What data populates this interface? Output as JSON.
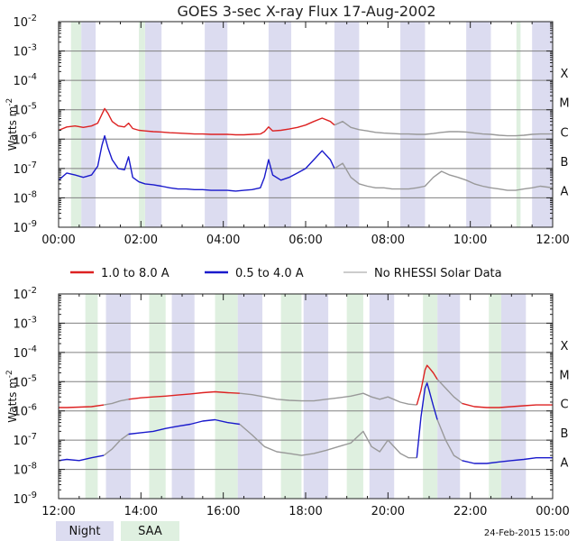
{
  "title": "GOES 3-sec X-ray Flux   17-Aug-2002",
  "footer_timestamp": "24-Feb-2015 15:00",
  "ylabel": "Watts m",
  "ylabel_superscript": "-2",
  "legend": [
    {
      "label": "1.0 to 8.0 A",
      "color": "#dd2222"
    },
    {
      "label": "0.5 to 4.0 A",
      "color": "#1a1acc"
    },
    {
      "label": "No RHESSI Solar Data",
      "color": "#999999"
    }
  ],
  "shading_legend": [
    {
      "label": "Night",
      "color": "#dcdcf0"
    },
    {
      "label": "SAA",
      "color": "#dff0e0"
    }
  ],
  "chart_data": [
    {
      "type": "line",
      "x_unit": "hours UT",
      "xlim": [
        0,
        12
      ],
      "x_tick_labels": [
        "00:00",
        "02:00",
        "04:00",
        "06:00",
        "08:00",
        "10:00",
        "12:00"
      ],
      "y_scale": "log",
      "ylim": [
        1e-09,
        0.01
      ],
      "y_tick_labels": [
        {
          "mantissa": "10",
          "exponent": "-9"
        },
        {
          "mantissa": "10",
          "exponent": "-8"
        },
        {
          "mantissa": "10",
          "exponent": "-7"
        },
        {
          "mantissa": "10",
          "exponent": "-6"
        },
        {
          "mantissa": "10",
          "exponent": "-5"
        },
        {
          "mantissa": "10",
          "exponent": "-4"
        },
        {
          "mantissa": "10",
          "exponent": "-3"
        },
        {
          "mantissa": "10",
          "exponent": "-2"
        }
      ],
      "class_labels": [
        {
          "label": "A",
          "value": 1e-08
        },
        {
          "label": "B",
          "value": 1e-07
        },
        {
          "label": "C",
          "value": 1e-06
        },
        {
          "label": "M",
          "value": 1e-05
        },
        {
          "label": "X",
          "value": 0.0001
        }
      ],
      "night_intervals": [
        [
          0.55,
          0.9
        ],
        [
          2.1,
          2.5
        ],
        [
          3.55,
          4.1
        ],
        [
          5.1,
          5.65
        ],
        [
          6.7,
          7.3
        ],
        [
          8.3,
          8.9
        ],
        [
          9.9,
          10.5
        ],
        [
          11.5,
          12.0
        ]
      ],
      "saa_intervals": [
        [
          0.3,
          0.55
        ],
        [
          1.95,
          2.1
        ],
        [
          11.12,
          11.22
        ]
      ],
      "series": [
        {
          "name": "1.0 to 8.0 A",
          "segments": [
            {
              "color": "#dd2222",
              "x": [
                0,
                0.2,
                0.4,
                0.6,
                0.8,
                0.95,
                1.05,
                1.12,
                1.2,
                1.3,
                1.45,
                1.6,
                1.7,
                1.8,
                1.95,
                2.1,
                2.3,
                2.5,
                2.7,
                2.9,
                3.1,
                3.3,
                3.5,
                3.7,
                3.9,
                4.1,
                4.3,
                4.5,
                4.7,
                4.9,
                5.0,
                5.1,
                5.2,
                5.4,
                5.6,
                5.8,
                6.0,
                6.2,
                6.4,
                6.6,
                6.7
              ],
              "y": [
                2e-06,
                2.6e-06,
                2.8e-06,
                2.5e-06,
                2.8e-06,
                3.5e-06,
                7e-06,
                1.1e-05,
                7.5e-06,
                4e-06,
                2.8e-06,
                2.6e-06,
                3.5e-06,
                2.3e-06,
                2e-06,
                1.9e-06,
                1.8e-06,
                1.75e-06,
                1.65e-06,
                1.6e-06,
                1.55e-06,
                1.5e-06,
                1.5e-06,
                1.45e-06,
                1.45e-06,
                1.45e-06,
                1.4e-06,
                1.4e-06,
                1.45e-06,
                1.5e-06,
                1.8e-06,
                2.6e-06,
                1.9e-06,
                2e-06,
                2.2e-06,
                2.5e-06,
                3e-06,
                4e-06,
                5.2e-06,
                4e-06,
                3e-06
              ]
            },
            {
              "color": "#999999",
              "x": [
                6.7,
                6.9,
                7.1,
                7.3,
                7.5,
                7.7,
                7.9,
                8.1,
                8.3,
                8.5,
                8.7,
                8.9,
                9.1,
                9.3,
                9.5,
                9.7,
                9.9,
                10.1,
                10.3,
                10.5,
                10.7,
                10.9,
                11.1,
                11.3,
                11.5,
                11.7,
                12.0
              ],
              "y": [
                3e-06,
                4e-06,
                2.5e-06,
                2.1e-06,
                1.9e-06,
                1.7e-06,
                1.6e-06,
                1.55e-06,
                1.5e-06,
                1.5e-06,
                1.45e-06,
                1.45e-06,
                1.55e-06,
                1.7e-06,
                1.8e-06,
                1.8e-06,
                1.75e-06,
                1.6e-06,
                1.5e-06,
                1.45e-06,
                1.35e-06,
                1.3e-06,
                1.3e-06,
                1.35e-06,
                1.45e-06,
                1.5e-06,
                1.5e-06
              ]
            }
          ]
        },
        {
          "name": "0.5 to 4.0 A",
          "segments": [
            {
              "color": "#1a1acc",
              "x": [
                0,
                0.2,
                0.4,
                0.6,
                0.8,
                0.95,
                1.05,
                1.12,
                1.2,
                1.3,
                1.45,
                1.6,
                1.7,
                1.8,
                1.95,
                2.1,
                2.3,
                2.5,
                2.7,
                2.9,
                3.1,
                3.3,
                3.5,
                3.7,
                3.9,
                4.1,
                4.3,
                4.5,
                4.7,
                4.9,
                5.0,
                5.1,
                5.2,
                5.4,
                5.6,
                5.8,
                6.0,
                6.2,
                6.4,
                6.6,
                6.7
              ],
              "y": [
                4e-08,
                7e-08,
                6e-08,
                5e-08,
                6e-08,
                1.2e-07,
                6e-07,
                1.3e-06,
                5e-07,
                2e-07,
                1e-07,
                9e-08,
                2.5e-07,
                5e-08,
                3.5e-08,
                3e-08,
                2.8e-08,
                2.5e-08,
                2.2e-08,
                2e-08,
                2e-08,
                1.9e-08,
                1.9e-08,
                1.8e-08,
                1.8e-08,
                1.8e-08,
                1.7e-08,
                1.8e-08,
                1.9e-08,
                2.2e-08,
                5e-08,
                2e-07,
                6e-08,
                4e-08,
                5e-08,
                7e-08,
                1e-07,
                2e-07,
                4e-07,
                2e-07,
                1e-07
              ]
            },
            {
              "color": "#999999",
              "x": [
                6.7,
                6.9,
                7.1,
                7.3,
                7.5,
                7.7,
                7.9,
                8.1,
                8.3,
                8.5,
                8.7,
                8.9,
                9.1,
                9.3,
                9.5,
                9.7,
                9.9,
                10.1,
                10.3,
                10.5,
                10.7,
                10.9,
                11.1,
                11.3,
                11.5,
                11.7,
                12.0
              ],
              "y": [
                1e-07,
                1.5e-07,
                5e-08,
                3e-08,
                2.5e-08,
                2.2e-08,
                2.2e-08,
                2e-08,
                2e-08,
                2e-08,
                2.2e-08,
                2.5e-08,
                5e-08,
                8e-08,
                6e-08,
                5e-08,
                4e-08,
                3e-08,
                2.5e-08,
                2.2e-08,
                2e-08,
                1.8e-08,
                1.8e-08,
                2e-08,
                2.2e-08,
                2.5e-08,
                2.2e-08
              ]
            }
          ]
        }
      ]
    },
    {
      "type": "line",
      "x_unit": "hours UT",
      "xlim": [
        12,
        24
      ],
      "x_tick_labels": [
        "12:00",
        "14:00",
        "16:00",
        "18:00",
        "20:00",
        "22:00",
        "00:00"
      ],
      "y_scale": "log",
      "ylim": [
        1e-09,
        0.01
      ],
      "y_tick_labels": [
        {
          "mantissa": "10",
          "exponent": "-9"
        },
        {
          "mantissa": "10",
          "exponent": "-8"
        },
        {
          "mantissa": "10",
          "exponent": "-7"
        },
        {
          "mantissa": "10",
          "exponent": "-6"
        },
        {
          "mantissa": "10",
          "exponent": "-5"
        },
        {
          "mantissa": "10",
          "exponent": "-4"
        },
        {
          "mantissa": "10",
          "exponent": "-3"
        },
        {
          "mantissa": "10",
          "exponent": "-2"
        }
      ],
      "class_labels": [
        {
          "label": "A",
          "value": 1e-08
        },
        {
          "label": "B",
          "value": 1e-07
        },
        {
          "label": "C",
          "value": 1e-06
        },
        {
          "label": "M",
          "value": 1e-05
        },
        {
          "label": "X",
          "value": 0.0001
        }
      ],
      "night_intervals": [
        [
          13.15,
          13.75
        ],
        [
          14.75,
          15.3
        ],
        [
          16.35,
          16.95
        ],
        [
          17.95,
          18.55
        ],
        [
          19.55,
          20.15
        ],
        [
          21.2,
          21.75
        ],
        [
          22.75,
          23.35
        ]
      ],
      "saa_intervals": [
        [
          12.65,
          12.95
        ],
        [
          14.2,
          14.6
        ],
        [
          15.8,
          16.35
        ],
        [
          17.4,
          17.9
        ],
        [
          19.0,
          19.4
        ],
        [
          20.85,
          21.2
        ],
        [
          22.45,
          22.75
        ]
      ],
      "series": [
        {
          "name": "1.0 to 8.0 A",
          "segments": [
            {
              "color": "#dd2222",
              "x": [
                12.0,
                12.2,
                12.5,
                12.8,
                13.1
              ],
              "y": [
                1.3e-06,
                1.3e-06,
                1.35e-06,
                1.4e-06,
                1.6e-06
              ]
            },
            {
              "color": "#999999",
              "x": [
                13.1,
                13.3,
                13.5,
                13.7
              ],
              "y": [
                1.6e-06,
                1.8e-06,
                2.2e-06,
                2.5e-06
              ]
            },
            {
              "color": "#dd2222",
              "x": [
                13.7,
                14.0,
                14.3,
                14.6,
                14.9,
                15.2,
                15.5,
                15.8,
                16.1,
                16.4
              ],
              "y": [
                2.5e-06,
                2.8e-06,
                3e-06,
                3.2e-06,
                3.5e-06,
                3.8e-06,
                4.2e-06,
                4.5e-06,
                4.2e-06,
                4e-06
              ]
            },
            {
              "color": "#999999",
              "x": [
                16.4,
                16.7,
                17.0,
                17.3,
                17.6,
                17.9,
                18.2,
                18.5,
                18.8,
                19.1,
                19.4,
                19.6,
                19.8,
                20.0,
                20.3,
                20.5,
                20.7
              ],
              "y": [
                4e-06,
                3.6e-06,
                3e-06,
                2.5e-06,
                2.3e-06,
                2.2e-06,
                2.2e-06,
                2.5e-06,
                2.8e-06,
                3.2e-06,
                4e-06,
                3e-06,
                2.5e-06,
                3e-06,
                2e-06,
                1.7e-06,
                1.6e-06
              ]
            },
            {
              "color": "#dd2222",
              "x": [
                20.7,
                20.8,
                20.9,
                20.95,
                21.0,
                21.1,
                21.2
              ],
              "y": [
                1.6e-06,
                5e-06,
                2.5e-05,
                3.6e-05,
                3e-05,
                2e-05,
                1.2e-05
              ]
            },
            {
              "color": "#999999",
              "x": [
                21.2,
                21.4,
                21.6,
                21.8
              ],
              "y": [
                1.2e-05,
                6e-06,
                3e-06,
                1.8e-06
              ]
            },
            {
              "color": "#dd2222",
              "x": [
                21.8,
                22.1,
                22.4,
                22.7,
                23.0,
                23.3,
                23.6,
                24.0
              ],
              "y": [
                1.8e-06,
                1.4e-06,
                1.3e-06,
                1.3e-06,
                1.4e-06,
                1.5e-06,
                1.6e-06,
                1.6e-06
              ]
            }
          ]
        },
        {
          "name": "0.5 to 4.0 A",
          "segments": [
            {
              "color": "#1a1acc",
              "x": [
                12.0,
                12.2,
                12.5,
                12.8,
                13.1
              ],
              "y": [
                2e-08,
                2.2e-08,
                2e-08,
                2.5e-08,
                3e-08
              ]
            },
            {
              "color": "#999999",
              "x": [
                13.1,
                13.3,
                13.5,
                13.7
              ],
              "y": [
                3e-08,
                5e-08,
                1e-07,
                1.6e-07
              ]
            },
            {
              "color": "#1a1acc",
              "x": [
                13.7,
                14.0,
                14.3,
                14.6,
                14.9,
                15.2,
                15.5,
                15.8,
                16.1,
                16.4
              ],
              "y": [
                1.6e-07,
                1.8e-07,
                2e-07,
                2.5e-07,
                3e-07,
                3.5e-07,
                4.5e-07,
                5e-07,
                4e-07,
                3.5e-07
              ]
            },
            {
              "color": "#999999",
              "x": [
                16.4,
                16.7,
                17.0,
                17.3,
                17.6,
                17.9,
                18.2,
                18.5,
                18.8,
                19.1,
                19.4,
                19.6,
                19.8,
                20.0,
                20.3,
                20.5,
                20.7
              ],
              "y": [
                3.5e-07,
                1.5e-07,
                6e-08,
                4e-08,
                3.5e-08,
                3e-08,
                3.5e-08,
                4.5e-08,
                6e-08,
                8e-08,
                2e-07,
                6e-08,
                4e-08,
                1e-07,
                3.5e-08,
                2.5e-08,
                2.5e-08
              ]
            },
            {
              "color": "#1a1acc",
              "x": [
                20.7,
                20.8,
                20.9,
                20.95,
                21.0,
                21.1,
                21.2
              ],
              "y": [
                2.5e-08,
                6e-07,
                6e-06,
                9e-06,
                5e-06,
                1.5e-06,
                5e-07
              ]
            },
            {
              "color": "#999999",
              "x": [
                21.2,
                21.4,
                21.6,
                21.8
              ],
              "y": [
                5e-07,
                1e-07,
                3e-08,
                2e-08
              ]
            },
            {
              "color": "#1a1acc",
              "x": [
                21.8,
                22.1,
                22.4,
                22.7,
                23.0,
                23.3,
                23.6,
                24.0
              ],
              "y": [
                2e-08,
                1.6e-08,
                1.6e-08,
                1.8e-08,
                2e-08,
                2.2e-08,
                2.5e-08,
                2.5e-08
              ]
            }
          ]
        }
      ]
    }
  ]
}
